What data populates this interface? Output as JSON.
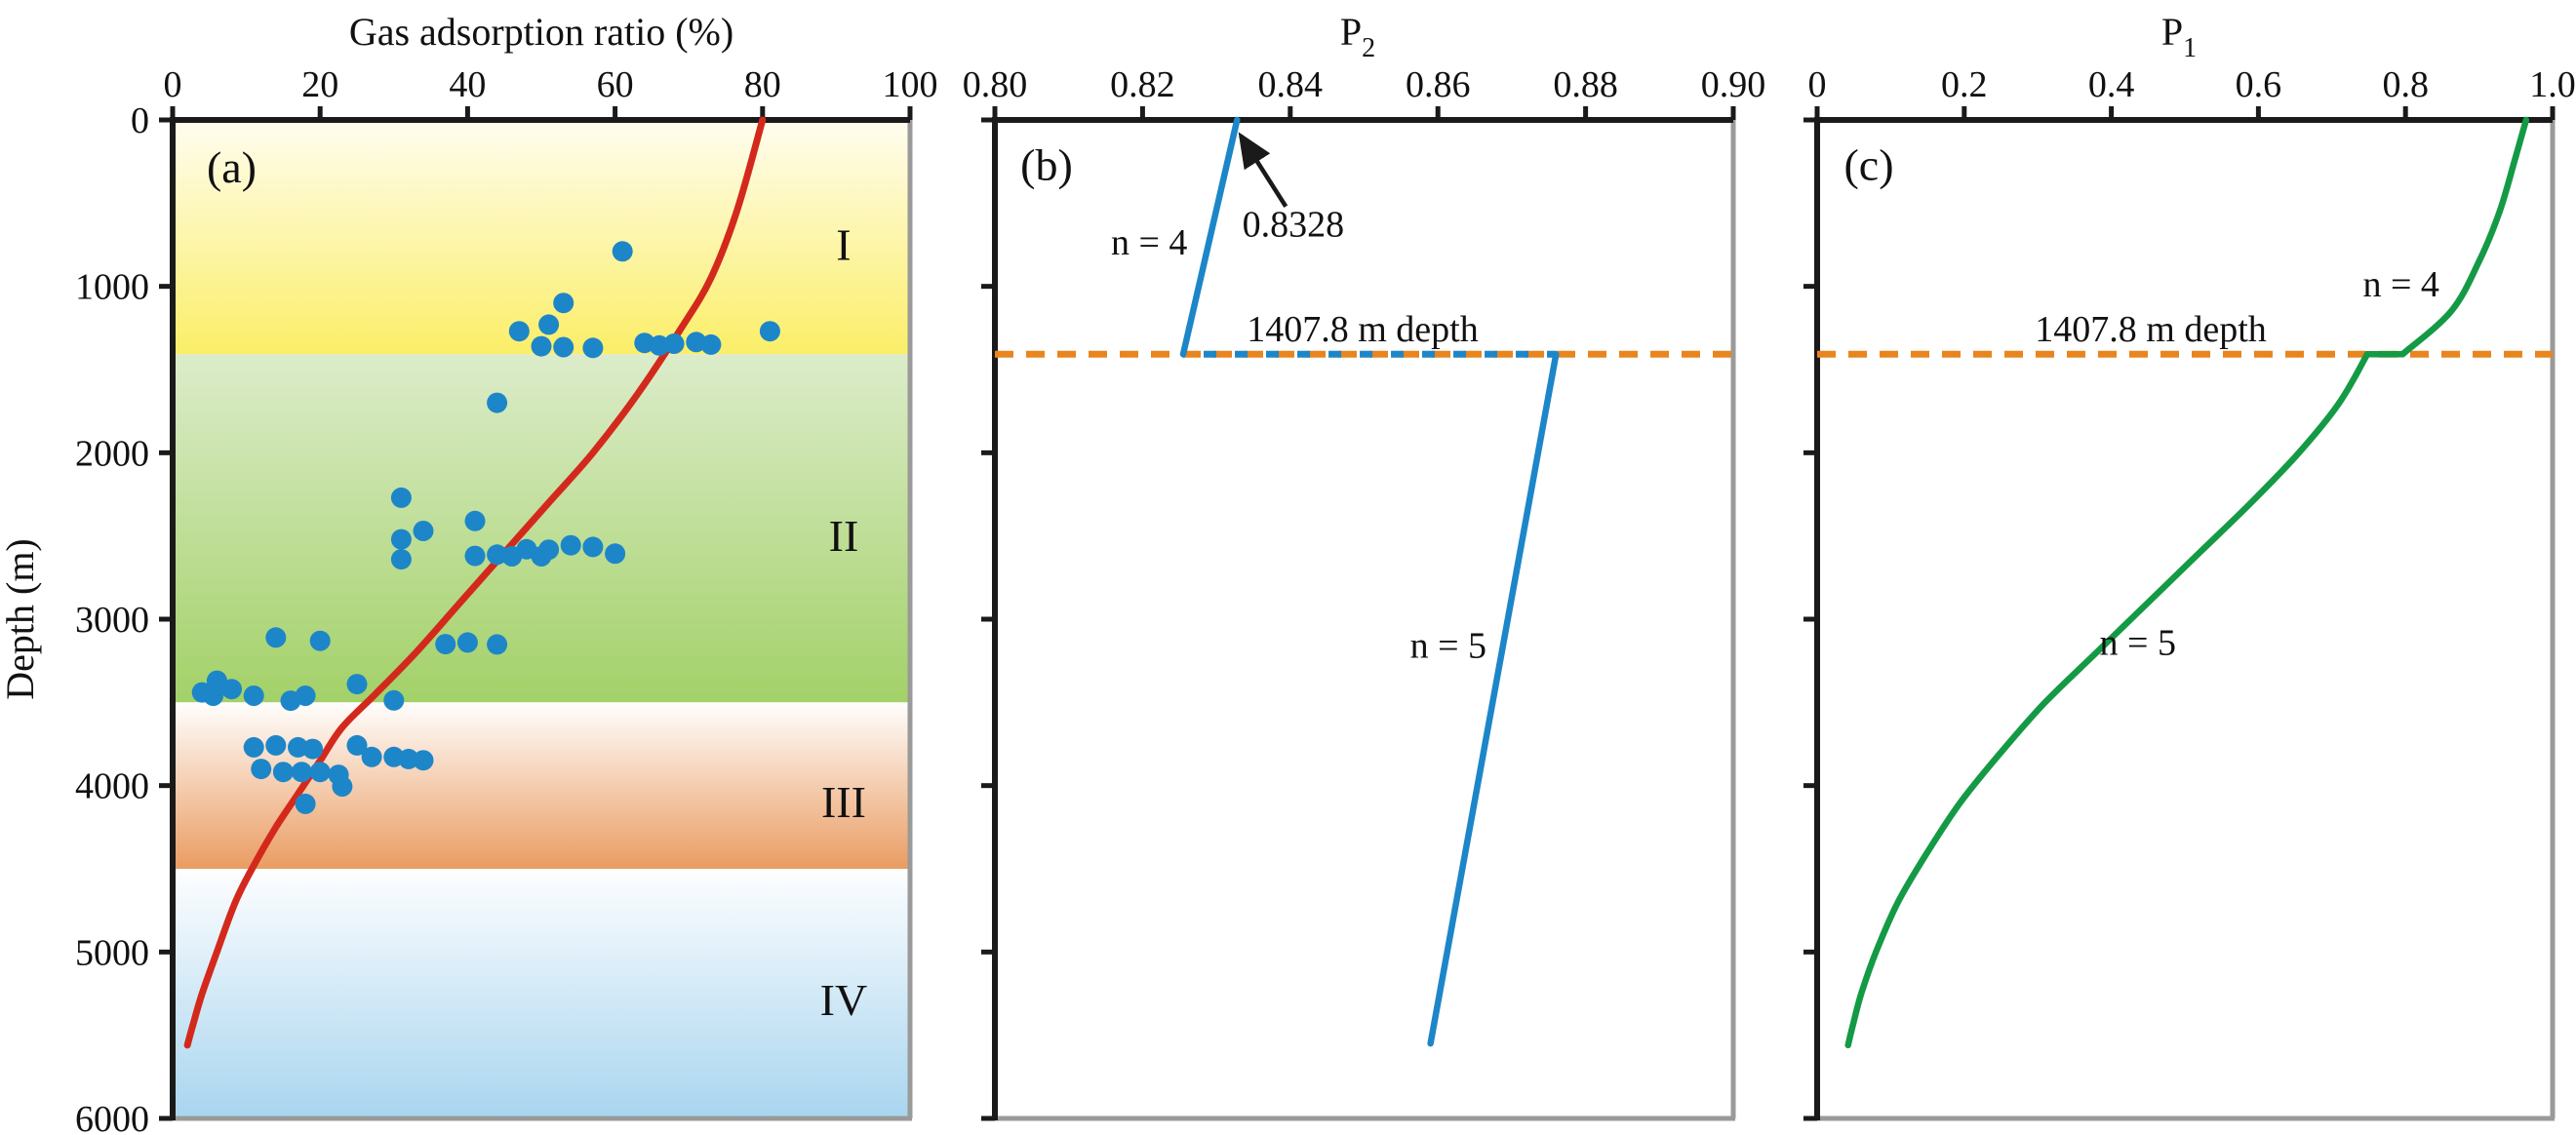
{
  "figure": {
    "depth_axis_label": "Depth (m)"
  },
  "colors": {
    "scatter_blue": "#1d86c8",
    "curve_red": "#d3291d",
    "line_blue": "#1d86c8",
    "line_green": "#149a45",
    "dashed_orange": "#e8851f",
    "zone_label_red": "#e02a21",
    "frame_gray": "#9a9a9a",
    "axis_black": "#1a1a1a",
    "zone1_top": "#fffdf0",
    "zone1_bottom": "#fbee68",
    "zone2_top": "#dcecca",
    "zone2_bottom": "#a3d168",
    "zone3_top": "#fffefd",
    "zone3_bottom": "#ea9c62",
    "zone4_top": "#fdfeff",
    "zone4_bottom": "#a9d5ef"
  },
  "chart_data": [
    {
      "id": "a",
      "type": "scatter",
      "tag": {
        "text": "(a)",
        "x": 8,
        "depth": 375
      },
      "xlabel": "Gas adsorption ratio (%)",
      "xlabel_sub": "",
      "ylabel": "Depth (m)",
      "xlim": [
        0,
        100
      ],
      "ylim": [
        0,
        6000
      ],
      "xticks": [
        {
          "v": 0,
          "label": "0"
        },
        {
          "v": 20,
          "label": "20"
        },
        {
          "v": 40,
          "label": "40"
        },
        {
          "v": 60,
          "label": "60"
        },
        {
          "v": 80,
          "label": "80"
        },
        {
          "v": 100,
          "label": "100"
        }
      ],
      "yticks": [
        {
          "v": 0,
          "label": "0"
        },
        {
          "v": 1000,
          "label": "1000"
        },
        {
          "v": 2000,
          "label": "2000"
        },
        {
          "v": 3000,
          "label": "3000"
        },
        {
          "v": 4000,
          "label": "4000"
        },
        {
          "v": 5000,
          "label": "5000"
        },
        {
          "v": 6000,
          "label": "6000"
        }
      ],
      "ytick_labels": true,
      "zones": [
        {
          "label": "I",
          "from": 0,
          "to": 1407.8,
          "grad": "gz1",
          "label_x": 91,
          "label_depth": 840
        },
        {
          "label": "II",
          "from": 1407.8,
          "to": 3500,
          "grad": "gz2",
          "label_x": 91,
          "label_depth": 2590
        },
        {
          "label": "III",
          "from": 3500,
          "to": 4500,
          "grad": "gz3",
          "label_x": 91,
          "label_depth": 4190
        },
        {
          "label": "IV",
          "from": 4500,
          "to": 6000,
          "grad": "gz4",
          "label_x": 91,
          "label_depth": 5380
        }
      ],
      "series": [
        {
          "name": "model-curve",
          "color": "curve_red",
          "width": 7,
          "smooth": true,
          "points": [
            [
              80,
              0
            ],
            [
              76.5,
              550
            ],
            [
              73,
              950
            ],
            [
              69,
              1250
            ],
            [
              63,
              1650
            ],
            [
              57,
              2000
            ],
            [
              51,
              2300
            ],
            [
              45,
              2600
            ],
            [
              39,
              2900
            ],
            [
              33,
              3200
            ],
            [
              27.5,
              3450
            ],
            [
              23,
              3650
            ],
            [
              20,
              3850
            ],
            [
              17,
              4050
            ],
            [
              14,
              4250
            ],
            [
              11,
              4480
            ],
            [
              8.5,
              4700
            ],
            [
              6,
              5000
            ],
            [
              4,
              5250
            ],
            [
              2.8,
              5430
            ],
            [
              2,
              5560
            ]
          ]
        }
      ],
      "scatter": [
        [
          61,
          790
        ],
        [
          53,
          1100
        ],
        [
          51,
          1230
        ],
        [
          47,
          1270
        ],
        [
          81,
          1270
        ],
        [
          50,
          1360
        ],
        [
          53,
          1365
        ],
        [
          57,
          1370
        ],
        [
          64,
          1340
        ],
        [
          66,
          1355
        ],
        [
          68,
          1345
        ],
        [
          71,
          1335
        ],
        [
          73,
          1350
        ],
        [
          44,
          1700
        ],
        [
          31,
          2270
        ],
        [
          41,
          2410
        ],
        [
          34,
          2470
        ],
        [
          31,
          2520
        ],
        [
          31,
          2640
        ],
        [
          41,
          2620
        ],
        [
          44,
          2612
        ],
        [
          46,
          2622
        ],
        [
          48,
          2580
        ],
        [
          50,
          2622
        ],
        [
          51,
          2582
        ],
        [
          54,
          2556
        ],
        [
          57,
          2566
        ],
        [
          60,
          2606
        ],
        [
          14,
          3110
        ],
        [
          20,
          3130
        ],
        [
          37,
          3150
        ],
        [
          40,
          3140
        ],
        [
          44,
          3152
        ],
        [
          6,
          3370
        ],
        [
          25,
          3390
        ],
        [
          8,
          3420
        ],
        [
          4,
          3440
        ],
        [
          5.5,
          3460
        ],
        [
          11,
          3460
        ],
        [
          18,
          3460
        ],
        [
          16,
          3490
        ],
        [
          30,
          3488
        ],
        [
          11,
          3770
        ],
        [
          14,
          3758
        ],
        [
          17,
          3770
        ],
        [
          19,
          3780
        ],
        [
          25,
          3758
        ],
        [
          27,
          3828
        ],
        [
          30,
          3828
        ],
        [
          32,
          3840
        ],
        [
          34,
          3848
        ],
        [
          12,
          3900
        ],
        [
          15,
          3918
        ],
        [
          17.5,
          3918
        ],
        [
          20,
          3918
        ],
        [
          22.5,
          3935
        ],
        [
          23,
          4005
        ],
        [
          18,
          4110
        ]
      ],
      "annotations": []
    },
    {
      "id": "b",
      "type": "line",
      "tag": {
        "text": "(b)",
        "x": 0.807,
        "depth": 360
      },
      "xlabel": "P",
      "xlabel_sub": "2",
      "xlim": [
        0.8,
        0.9
      ],
      "ylim": [
        0,
        6000
      ],
      "xticks": [
        {
          "v": 0.8,
          "label": "0.80"
        },
        {
          "v": 0.82,
          "label": "0.82"
        },
        {
          "v": 0.84,
          "label": "0.84"
        },
        {
          "v": 0.86,
          "label": "0.86"
        },
        {
          "v": 0.88,
          "label": "0.88"
        },
        {
          "v": 0.9,
          "label": "0.90"
        }
      ],
      "yticks": [
        {
          "v": 0
        },
        {
          "v": 1000
        },
        {
          "v": 2000
        },
        {
          "v": 3000
        },
        {
          "v": 4000
        },
        {
          "v": 5000
        },
        {
          "v": 6000
        }
      ],
      "ytick_labels": false,
      "dashed_line": {
        "depth": 1407.8
      },
      "jump": {
        "from": 0.8255,
        "to": 0.876,
        "depth": 1407.8
      },
      "series": [
        {
          "name": "n-4-segment",
          "color": "line_blue",
          "width": 6.5,
          "smooth": false,
          "points": [
            [
              0.8328,
              0
            ],
            [
              0.8255,
              1407.8
            ]
          ]
        },
        {
          "name": "n-5-segment",
          "color": "line_blue",
          "width": 6.5,
          "smooth": false,
          "points": [
            [
              0.876,
              1407.8
            ],
            [
              0.859,
              5550
            ]
          ]
        }
      ],
      "scatter": [],
      "annotations": [
        {
          "text": "n = 4",
          "x": 0.8209,
          "depth": 810
        },
        {
          "text": "0.8328",
          "x": 0.8404,
          "depth": 700
        },
        {
          "text": "1407.8 m depth",
          "x": 0.8498,
          "depth": 1330
        },
        {
          "text": "n = 5",
          "x": 0.8614,
          "depth": 3230
        }
      ],
      "arrow": {
        "from_x": 0.8394,
        "from_depth": 520,
        "to_x": 0.8333,
        "to_depth": 95
      }
    },
    {
      "id": "c",
      "type": "line",
      "tag": {
        "text": "(c)",
        "x": 0.0703,
        "depth": 360
      },
      "xlabel": "P",
      "xlabel_sub": "1",
      "xlim": [
        0,
        1.0
      ],
      "ylim": [
        0,
        6000
      ],
      "xticks": [
        {
          "v": 0,
          "label": "0"
        },
        {
          "v": 0.2,
          "label": "0.2"
        },
        {
          "v": 0.4,
          "label": "0.4"
        },
        {
          "v": 0.6,
          "label": "0.6"
        },
        {
          "v": 0.8,
          "label": "0.8"
        },
        {
          "v": 1.0,
          "label": "1.0"
        }
      ],
      "yticks": [
        {
          "v": 0
        },
        {
          "v": 1000
        },
        {
          "v": 2000
        },
        {
          "v": 3000
        },
        {
          "v": 4000
        },
        {
          "v": 5000
        },
        {
          "v": 6000
        }
      ],
      "ytick_labels": false,
      "dashed_line": {
        "depth": 1407.8
      },
      "series": [
        {
          "name": "n-4-curve",
          "color": "line_green",
          "width": 6.5,
          "smooth": true,
          "points": [
            [
              0.964,
              0
            ],
            [
              0.948,
              250
            ],
            [
              0.928,
              550
            ],
            [
              0.9,
              850
            ],
            [
              0.862,
              1150
            ],
            [
              0.796,
              1407.8
            ]
          ]
        },
        {
          "name": "jump-segment",
          "color": "line_green",
          "width": 6.5,
          "smooth": false,
          "points": [
            [
              0.748,
              1407.8
            ],
            [
              0.796,
              1407.8
            ]
          ]
        },
        {
          "name": "n-5-curve",
          "color": "line_green",
          "width": 6.5,
          "smooth": true,
          "points": [
            [
              0.748,
              1407.8
            ],
            [
              0.71,
              1700
            ],
            [
              0.655,
              2000
            ],
            [
              0.59,
              2300
            ],
            [
              0.52,
              2600
            ],
            [
              0.45,
              2900
            ],
            [
              0.38,
              3200
            ],
            [
              0.31,
              3500
            ],
            [
              0.25,
              3800
            ],
            [
              0.195,
              4100
            ],
            [
              0.15,
              4400
            ],
            [
              0.11,
              4700
            ],
            [
              0.08,
              5000
            ],
            [
              0.06,
              5250
            ],
            [
              0.048,
              5450
            ],
            [
              0.042,
              5560
            ]
          ]
        }
      ],
      "scatter": [],
      "annotations": [
        {
          "text": "n = 4",
          "x": 0.794,
          "depth": 1060
        },
        {
          "text": "1407.8 m depth",
          "x": 0.4536,
          "depth": 1330
        },
        {
          "text": "n = 5",
          "x": 0.436,
          "depth": 3215
        }
      ]
    }
  ]
}
